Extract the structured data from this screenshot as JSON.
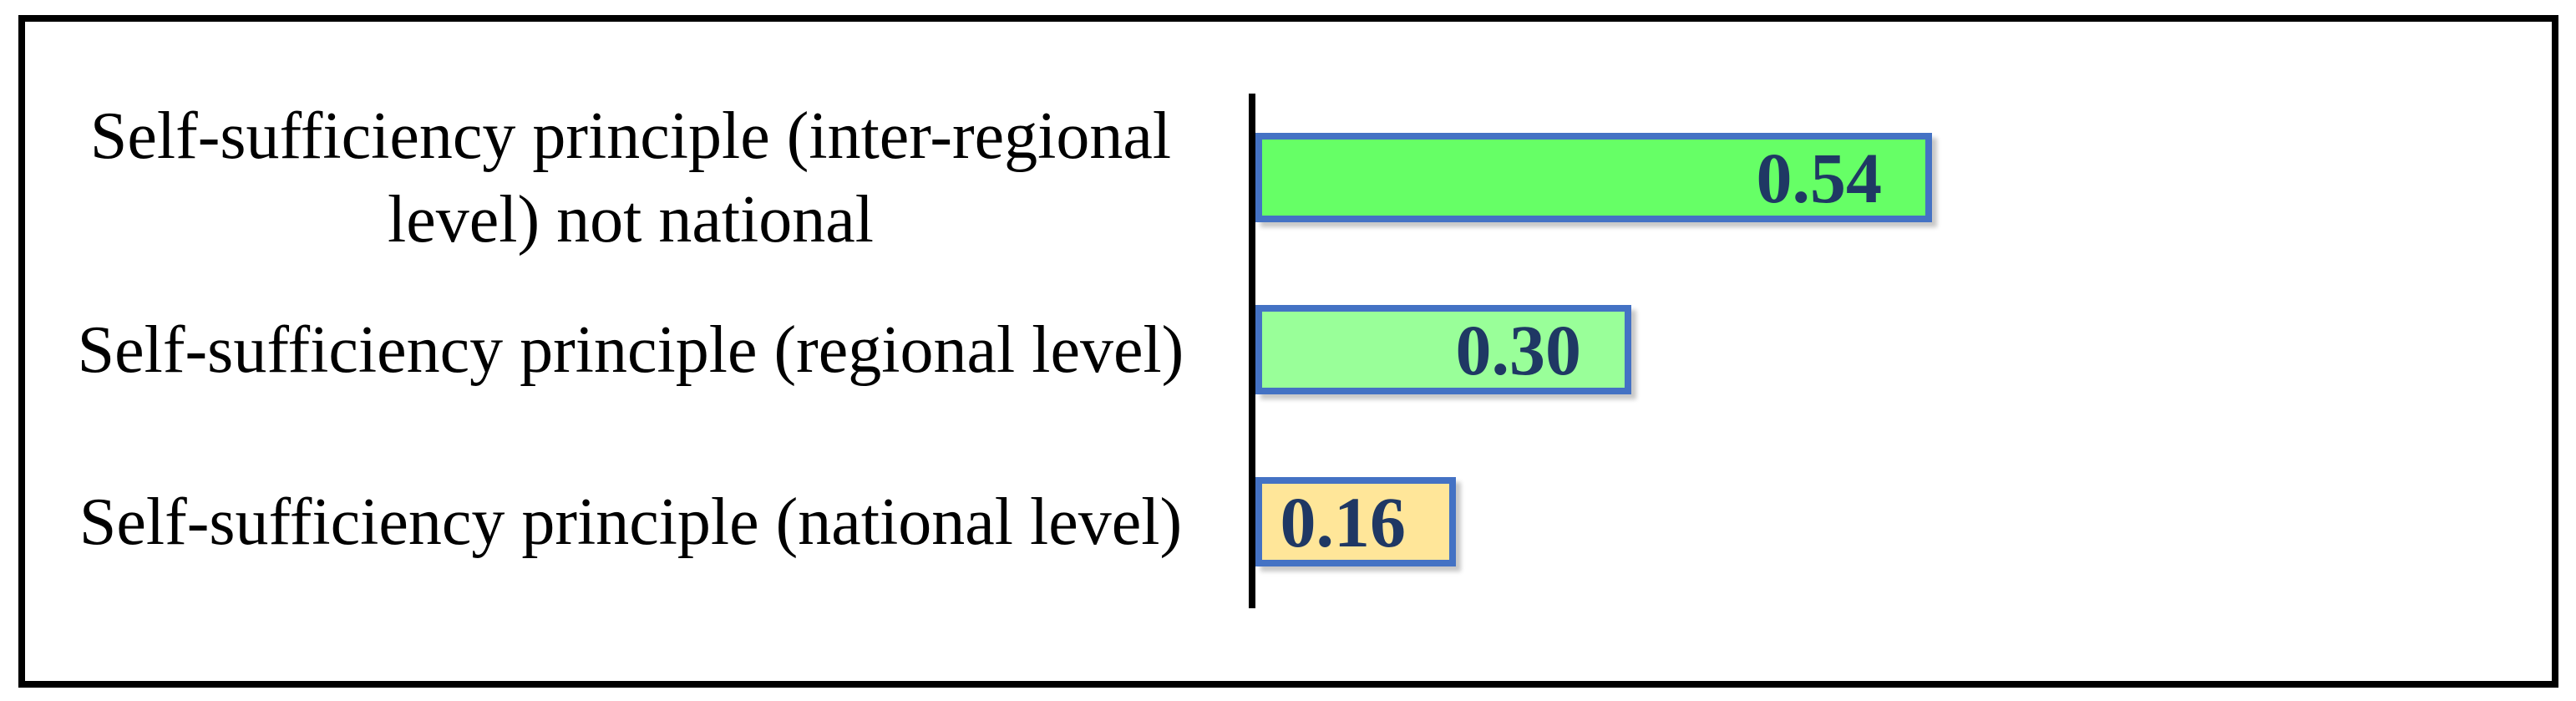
{
  "chart_data": {
    "type": "bar",
    "orientation": "horizontal",
    "title": "",
    "xlabel": "",
    "ylabel": "",
    "categories": [
      "Self-sufficiency principle (inter-regional level) not national",
      "Self-sufficiency principle (regional level)",
      "Self-sufficiency principle (national level)"
    ],
    "values": [
      0.54,
      0.3,
      0.16
    ],
    "value_labels": [
      "0.54",
      "0.30",
      "0.16"
    ],
    "bar_colors": [
      "#66FF66",
      "#99FF99",
      "#FFE699"
    ],
    "bar_border_color": "#4472C4",
    "value_label_color": "#1F3864",
    "category_label_color": "#000000",
    "axis_line_color": "#000000",
    "frame_border_color": "#000000",
    "background_color": "#FFFFFF",
    "xlim": [
      0,
      1
    ],
    "grid": false,
    "legend": false,
    "value_label_position": "inside-end"
  }
}
